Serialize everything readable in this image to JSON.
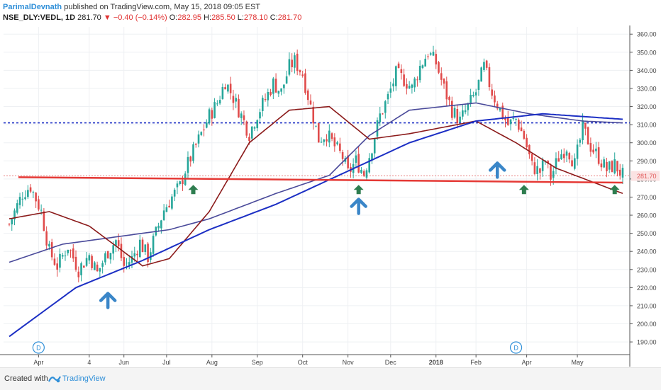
{
  "header": {
    "author": "ParimalDevnath",
    "published": "published on TradingView.com, May 15, 2018 09:05 EST",
    "symbol": "NSE_DLY:VEDL, 1D",
    "last": "281.70",
    "change": "▼ −0.40 (−0.14%)",
    "o_label": "O:",
    "o_value": "282.95",
    "h_label": "H:",
    "h_value": "285.50",
    "l_label": "L:",
    "l_value": "278.10",
    "c_label": "C:",
    "c_value": "281.70"
  },
  "footer": {
    "created_with": "Created with",
    "brand": "TradingView"
  },
  "colors": {
    "up": "#26a69a",
    "down": "#e04b4b",
    "ma_short": "#8b1a1a",
    "ma_mid": "#4a4a9a",
    "ma_long": "#1c2fc4",
    "support": "#e53935",
    "resistance": "#1c2fc4",
    "arrow_blue": "#3a86c8",
    "arrow_green": "#2e7d4f",
    "price_label": "#e05555"
  },
  "chart_data": {
    "type": "candlestick",
    "x_ticks": [
      "Apr",
      "4",
      "Jun",
      "Jul",
      "Aug",
      "Sep",
      "Oct",
      "Nov",
      "Dec",
      "2018",
      "Feb",
      "Apr",
      "May"
    ],
    "y_ticks": [
      "190.00",
      "200.00",
      "210.00",
      "220.00",
      "230.00",
      "240.00",
      "250.00",
      "260.00",
      "270.00",
      "280.00",
      "290.00",
      "300.00",
      "310.00",
      "320.00",
      "330.00",
      "340.00",
      "350.00",
      "360.00"
    ],
    "ylim": [
      183,
      364
    ],
    "last_price": 281.7,
    "last_price_label": "281.70",
    "resistance_level": 311,
    "support_line": {
      "start": 281,
      "end": 278
    },
    "anchors": [
      [
        0,
        255
      ],
      [
        5,
        272
      ],
      [
        8,
        276
      ],
      [
        12,
        262
      ],
      [
        15,
        240
      ],
      [
        18,
        232
      ],
      [
        22,
        243
      ],
      [
        26,
        230
      ],
      [
        30,
        238
      ],
      [
        33,
        228
      ],
      [
        37,
        240
      ],
      [
        40,
        246
      ],
      [
        43,
        232
      ],
      [
        46,
        236
      ],
      [
        49,
        245
      ],
      [
        52,
        237
      ],
      [
        55,
        250
      ],
      [
        58,
        263
      ],
      [
        61,
        270
      ],
      [
        64,
        276
      ],
      [
        66,
        285
      ],
      [
        69,
        295
      ],
      [
        72,
        305
      ],
      [
        75,
        315
      ],
      [
        78,
        322
      ],
      [
        81,
        334
      ],
      [
        84,
        325
      ],
      [
        87,
        315
      ],
      [
        90,
        305
      ],
      [
        93,
        316
      ],
      [
        96,
        324
      ],
      [
        99,
        333
      ],
      [
        102,
        328
      ],
      [
        105,
        342
      ],
      [
        107,
        345
      ],
      [
        110,
        338
      ],
      [
        113,
        320
      ],
      [
        116,
        302
      ],
      [
        119,
        305
      ],
      [
        122,
        298
      ],
      [
        125,
        292
      ],
      [
        127,
        283
      ],
      [
        130,
        290
      ],
      [
        133,
        283
      ],
      [
        136,
        298
      ],
      [
        139,
        315
      ],
      [
        142,
        325
      ],
      [
        145,
        338
      ],
      [
        148,
        335
      ],
      [
        151,
        330
      ],
      [
        154,
        342
      ],
      [
        157,
        350
      ],
      [
        160,
        344
      ],
      [
        163,
        330
      ],
      [
        166,
        318
      ],
      [
        169,
        312
      ],
      [
        172,
        320
      ],
      [
        175,
        328
      ],
      [
        178,
        342
      ],
      [
        181,
        328
      ],
      [
        184,
        318
      ],
      [
        187,
        310
      ],
      [
        190,
        313
      ],
      [
        193,
        303
      ],
      [
        196,
        287
      ],
      [
        199,
        284
      ],
      [
        201,
        290
      ],
      [
        203,
        281
      ],
      [
        206,
        292
      ],
      [
        209,
        298
      ],
      [
        212,
        288
      ],
      [
        215,
        308
      ],
      [
        218,
        298
      ],
      [
        221,
        292
      ],
      [
        224,
        285
      ],
      [
        227,
        288
      ],
      [
        230,
        282
      ]
    ],
    "ma_short_anchors": [
      [
        0,
        258
      ],
      [
        15,
        262
      ],
      [
        30,
        254
      ],
      [
        50,
        232
      ],
      [
        60,
        236
      ],
      [
        75,
        262
      ],
      [
        90,
        300
      ],
      [
        105,
        318
      ],
      [
        120,
        320
      ],
      [
        135,
        302
      ],
      [
        150,
        305
      ],
      [
        175,
        312
      ],
      [
        190,
        300
      ],
      [
        205,
        286
      ],
      [
        230,
        272
      ]
    ],
    "ma_mid_anchors": [
      [
        0,
        234
      ],
      [
        20,
        244
      ],
      [
        40,
        248
      ],
      [
        60,
        252
      ],
      [
        75,
        258
      ],
      [
        100,
        272
      ],
      [
        120,
        282
      ],
      [
        135,
        304
      ],
      [
        150,
        318
      ],
      [
        175,
        322
      ],
      [
        195,
        316
      ],
      [
        215,
        312
      ],
      [
        230,
        311
      ]
    ],
    "ma_long_anchors": [
      [
        0,
        193
      ],
      [
        25,
        220
      ],
      [
        50,
        235
      ],
      [
        75,
        252
      ],
      [
        100,
        266
      ],
      [
        125,
        283
      ],
      [
        150,
        300
      ],
      [
        175,
        312
      ],
      [
        200,
        316
      ],
      [
        230,
        313
      ]
    ],
    "markers": [
      {
        "kind": "green-arrow",
        "index": 69
      },
      {
        "kind": "green-arrow",
        "index": 131
      },
      {
        "kind": "blue-arrow",
        "index": 131
      },
      {
        "kind": "blue-arrow",
        "index": 37
      },
      {
        "kind": "blue-arrow",
        "index": 183
      },
      {
        "kind": "green-arrow",
        "index": 193
      },
      {
        "kind": "green-arrow",
        "index": 227
      }
    ],
    "event_labels": [
      {
        "text": "D",
        "index": 11
      },
      {
        "text": "D",
        "index": 190
      }
    ]
  }
}
